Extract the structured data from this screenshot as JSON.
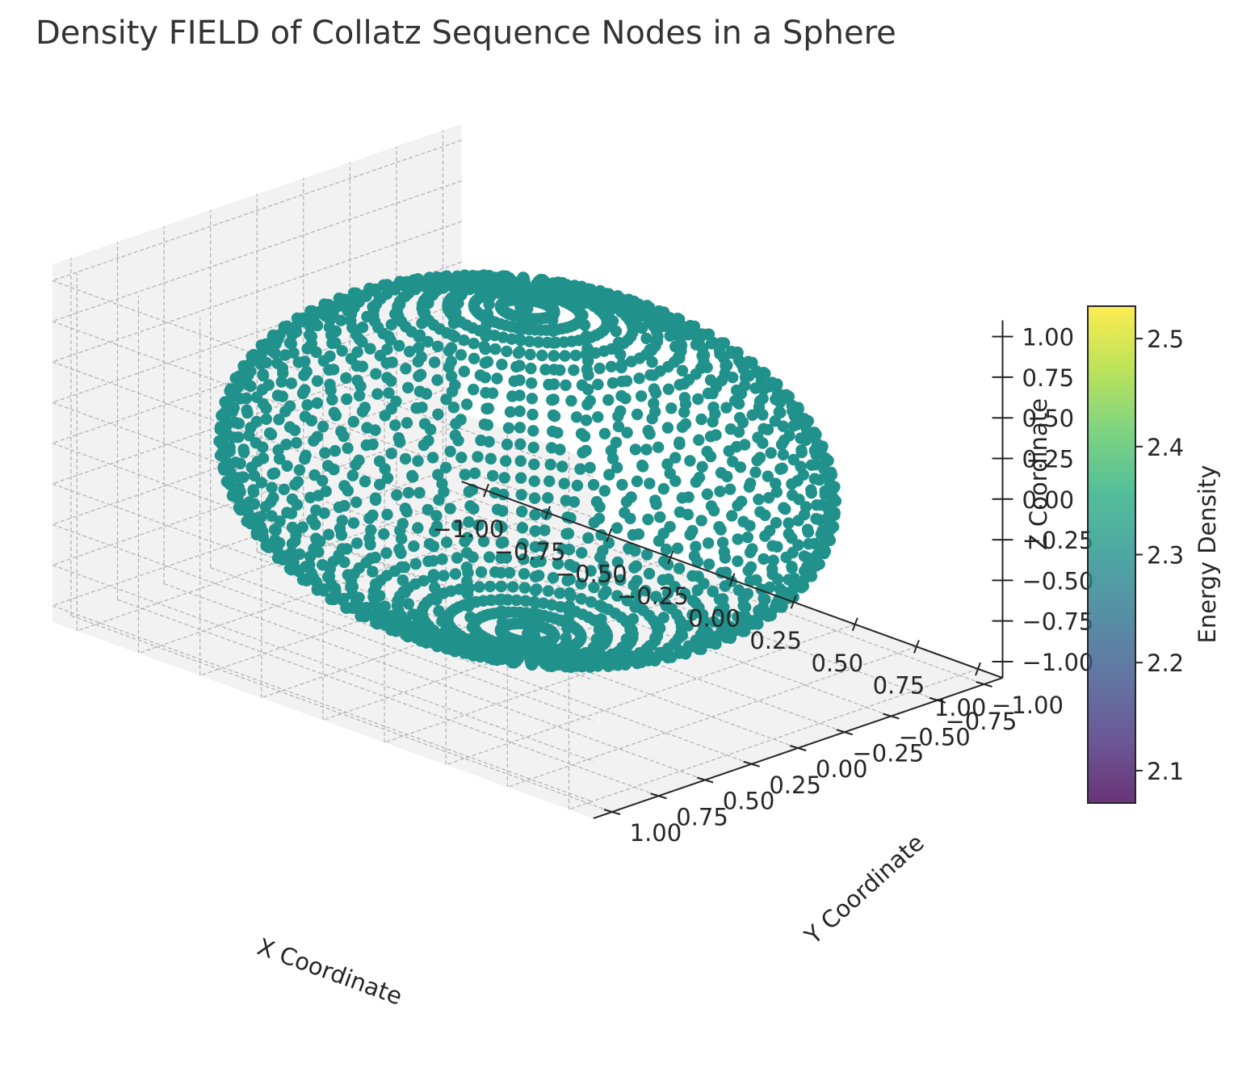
{
  "chart_data": {
    "type": "scatter",
    "projection": "3d",
    "title": "Density FIELD of Collatz Sequence Nodes in a Sphere",
    "xlabel": "X Coordinate",
    "ylabel": "Y Coordinate",
    "zlabel": "Z Coordinate",
    "xlim": [
      -1.1,
      1.1
    ],
    "ylim": [
      -1.1,
      1.1
    ],
    "zlim": [
      -1.1,
      1.1
    ],
    "xticks": [
      "−1.00",
      "−0.75",
      "−0.50",
      "−0.25",
      "0.00",
      "0.25",
      "0.50",
      "0.75",
      "1.00"
    ],
    "yticks": [
      "−1.00",
      "−0.75",
      "−0.50",
      "−0.25",
      "0.00",
      "0.25",
      "0.50",
      "0.75",
      "1.00"
    ],
    "zticks": [
      "−1.00",
      "−0.75",
      "−0.50",
      "−0.25",
      "0.00",
      "0.25",
      "0.50",
      "0.75",
      "1.00"
    ],
    "tick_values": [
      -1,
      -0.75,
      -0.5,
      -0.25,
      0,
      0.25,
      0.5,
      0.75,
      1
    ],
    "points": {
      "shape": "sphere surface (uniform lat-long grid)",
      "radius": 1.0,
      "center": [
        0,
        0,
        0
      ],
      "marker_color": "#21918c",
      "value": 2.3
    },
    "colorbar": {
      "label": "Energy Density",
      "colormap": "viridis",
      "range": [
        2.07,
        2.53
      ],
      "ticks": [
        "2.1",
        "2.2",
        "2.3",
        "2.4",
        "2.5"
      ],
      "tick_values": [
        2.1,
        2.2,
        2.3,
        2.4,
        2.5
      ]
    },
    "grid": true,
    "pane_color": "#f2f2f2"
  }
}
